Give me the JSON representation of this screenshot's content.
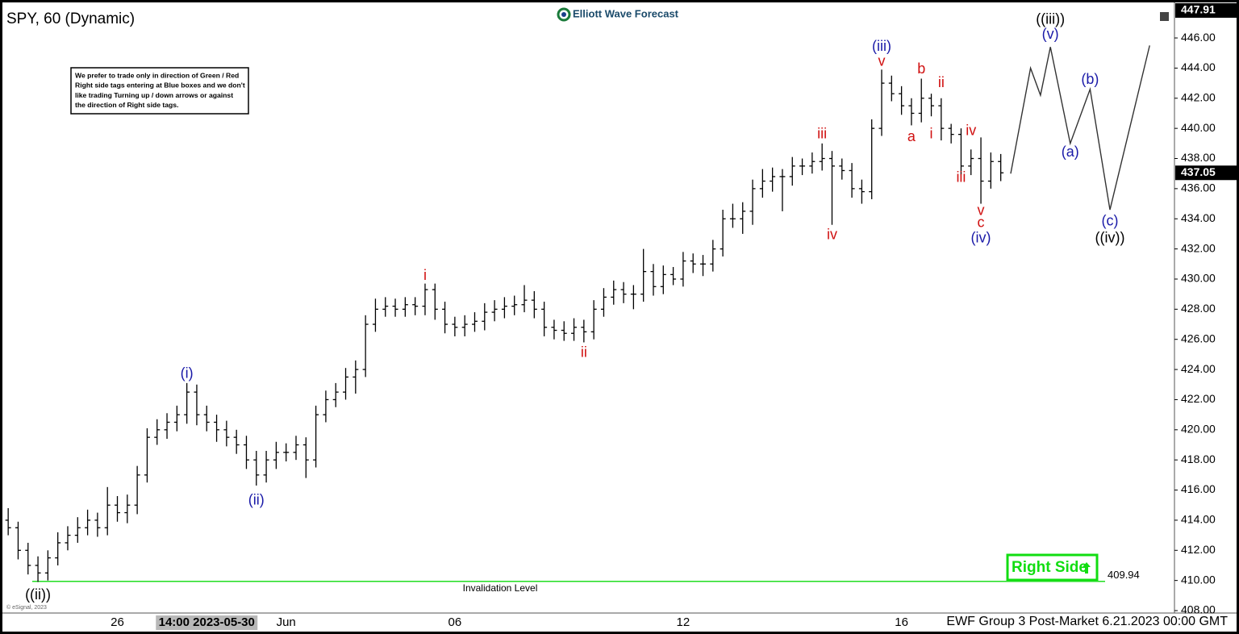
{
  "chart_data": {
    "type": "ohlc",
    "title": "SPY, 60 (Dynamic)",
    "watermark": "Elliott Wave Forecast",
    "footer": "EWF Group 3 Post-Market 6.21.2023 00:00 GMT",
    "copyright": "© eSignal, 2023",
    "note_lines": [
      "We prefer to trade only in direction of Green / Red",
      "Right side tags entering at Blue boxes and we don't",
      "like trading Turning up / down arrows or against",
      "the direction of Right side tags."
    ],
    "bar_color": "#000000",
    "categories": [
      null,
      null,
      null,
      null,
      null,
      null,
      null,
      null,
      null,
      null,
      null,
      "26",
      null,
      null,
      null,
      null,
      null,
      null,
      null,
      null,
      "14:00 2023-05-30",
      null,
      null,
      null,
      null,
      null,
      null,
      null,
      "Jun",
      null,
      null,
      null,
      null,
      null,
      null,
      null,
      null,
      null,
      null,
      null,
      null,
      null,
      null,
      null,
      null,
      "06",
      null,
      null,
      null,
      null,
      null,
      null,
      null,
      null,
      null,
      null,
      null,
      null,
      null,
      null,
      null,
      null,
      null,
      null,
      null,
      null,
      null,
      null,
      "12",
      null,
      null,
      null,
      null,
      null,
      null,
      null,
      null,
      null,
      null,
      null,
      null,
      null,
      null,
      null,
      null,
      null,
      null,
      null,
      null,
      null,
      "16",
      null,
      null,
      null,
      null,
      null,
      null,
      null,
      null,
      null,
      null,
      null,
      null,
      null,
      null,
      null,
      null,
      null,
      null,
      null,
      null,
      null,
      null,
      null,
      null,
      null,
      null,
      null
    ],
    "crosshair_category": 20,
    "bars": [
      [
        414,
        414.8,
        413,
        413.5
      ],
      [
        413.5,
        413.9,
        411.4,
        412
      ],
      [
        412,
        412.5,
        410.4,
        411
      ],
      [
        411,
        411.6,
        409.9,
        410.5
      ],
      [
        410.5,
        412,
        410,
        411.5
      ],
      [
        411.5,
        413.2,
        411,
        412.5
      ],
      [
        412.5,
        413.6,
        412,
        413
      ],
      [
        413,
        414.2,
        412.5,
        413.5
      ],
      [
        413.5,
        414.7,
        413,
        414
      ],
      [
        414,
        414.5,
        412.9,
        413.5
      ],
      [
        413.5,
        416.2,
        413,
        415
      ],
      [
        415,
        415.6,
        413.9,
        414.5
      ],
      [
        414.5,
        415.7,
        413.8,
        415
      ],
      [
        415,
        417.6,
        414.4,
        417
      ],
      [
        417,
        420.1,
        416.5,
        419.5
      ],
      [
        419.5,
        420.7,
        419,
        420
      ],
      [
        420,
        421.1,
        419.4,
        420.5
      ],
      [
        420.5,
        421.6,
        419.9,
        421
      ],
      [
        421,
        423.1,
        420.4,
        422.5
      ],
      [
        422.5,
        423,
        420.3,
        421
      ],
      [
        421,
        421.6,
        419.9,
        420.5
      ],
      [
        420.5,
        421,
        419.2,
        420
      ],
      [
        420,
        420.6,
        418.9,
        419.5
      ],
      [
        419.5,
        420,
        418.4,
        419
      ],
      [
        419,
        419.6,
        417.4,
        418
      ],
      [
        418,
        418.6,
        416.3,
        417
      ],
      [
        417,
        418.6,
        416.5,
        418
      ],
      [
        418,
        419.2,
        417.4,
        418.5
      ],
      [
        418.5,
        419.1,
        417.9,
        418.5
      ],
      [
        418.5,
        419.6,
        418,
        419
      ],
      [
        419,
        419.5,
        416.8,
        418
      ],
      [
        418,
        421.6,
        417.5,
        421
      ],
      [
        421,
        422.6,
        420.5,
        422
      ],
      [
        422,
        423.1,
        421.5,
        422.5
      ],
      [
        422.5,
        424.1,
        422,
        423.5
      ],
      [
        423.5,
        424.6,
        422.4,
        424
      ],
      [
        424,
        427.6,
        423.5,
        427
      ],
      [
        427,
        428.7,
        426.5,
        428
      ],
      [
        428,
        428.8,
        427.5,
        428.2
      ],
      [
        428.2,
        428.7,
        427.5,
        428
      ],
      [
        428,
        428.8,
        427.5,
        428.3
      ],
      [
        428.3,
        428.8,
        427.6,
        428.2
      ],
      [
        428.2,
        429.7,
        427.6,
        429.3
      ],
      [
        429.3,
        429.7,
        427.3,
        428
      ],
      [
        428,
        428.5,
        426.4,
        427
      ],
      [
        427,
        427.5,
        426.2,
        426.8
      ],
      [
        426.8,
        427.6,
        426.2,
        427
      ],
      [
        427,
        427.8,
        426.5,
        427.2
      ],
      [
        427.2,
        428.4,
        426.6,
        427.8
      ],
      [
        427.8,
        428.6,
        427.2,
        428
      ],
      [
        428,
        428.8,
        427.4,
        428.2
      ],
      [
        428.2,
        428.9,
        427.6,
        428.3
      ],
      [
        428.3,
        429.6,
        427.8,
        428.6
      ],
      [
        428.6,
        429.2,
        427.4,
        428
      ],
      [
        428,
        428.5,
        426.2,
        426.8
      ],
      [
        426.8,
        427.3,
        426,
        426.6
      ],
      [
        426.6,
        427.2,
        425.9,
        426.4
      ],
      [
        426.4,
        427.4,
        425.9,
        426.8
      ],
      [
        426.8,
        427.3,
        425.8,
        426.5
      ],
      [
        426.5,
        428.6,
        426,
        428
      ],
      [
        428,
        429.4,
        427.5,
        428.8
      ],
      [
        428.8,
        429.9,
        428.3,
        429.3
      ],
      [
        429.3,
        429.8,
        428.4,
        429
      ],
      [
        429,
        429.6,
        428,
        429
      ],
      [
        429,
        432,
        428.5,
        430.5
      ],
      [
        430.5,
        431,
        428.9,
        429.5
      ],
      [
        429.5,
        430.9,
        429,
        430.3
      ],
      [
        430.3,
        430.8,
        429.6,
        430
      ],
      [
        430,
        431.8,
        429.5,
        431.2
      ],
      [
        431.2,
        431.7,
        430.4,
        431
      ],
      [
        431,
        431.6,
        430.2,
        431
      ],
      [
        431,
        432.6,
        430.5,
        432
      ],
      [
        432,
        434.6,
        431.5,
        434
      ],
      [
        434,
        435,
        433.4,
        434
      ],
      [
        434,
        435.1,
        433,
        434.5
      ],
      [
        434.5,
        436.6,
        433.6,
        436
      ],
      [
        436,
        437.3,
        435.4,
        436.5
      ],
      [
        436.5,
        437.4,
        435.8,
        436.8
      ],
      [
        436.8,
        437.3,
        434.5,
        436.8
      ],
      [
        436.8,
        438.1,
        436.2,
        437.5
      ],
      [
        437.5,
        438,
        436.9,
        437.5
      ],
      [
        437.5,
        438.4,
        437,
        437.8
      ],
      [
        437.8,
        439,
        437.2,
        438
      ],
      [
        438,
        438.5,
        433.6,
        437.5
      ],
      [
        437.5,
        438,
        436.6,
        437.2
      ],
      [
        437.2,
        437.7,
        435.4,
        436
      ],
      [
        436,
        436.6,
        435,
        435.8
      ],
      [
        435.8,
        440.6,
        435.3,
        440
      ],
      [
        440,
        443.9,
        439.5,
        443
      ],
      [
        443,
        443.5,
        441.8,
        442.3
      ],
      [
        442.3,
        442.8,
        440.9,
        441.5
      ],
      [
        441.5,
        442,
        440.2,
        441
      ],
      [
        441,
        443.3,
        440.4,
        442
      ],
      [
        442,
        442.3,
        440.8,
        441.5
      ],
      [
        441.5,
        442,
        439.2,
        440
      ],
      [
        440,
        440.3,
        439,
        439.6
      ],
      [
        439.6,
        440,
        436.9,
        437.5
      ],
      [
        437.5,
        438.6,
        436.9,
        438
      ],
      [
        438,
        439.4,
        435,
        436.5
      ],
      [
        436.5,
        438.4,
        436,
        437.8
      ],
      [
        437.8,
        438.3,
        436.5,
        437.05
      ]
    ],
    "projection": {
      "color": "#333333",
      "x": [
        101,
        103,
        104,
        105,
        107,
        109,
        111,
        115
      ],
      "values": [
        437,
        444,
        442.2,
        445.4,
        439,
        442.6,
        434.6,
        445.5
      ]
    },
    "annotations": [
      {
        "text": "((ii))",
        "x": 3,
        "y": 409.0,
        "color": "#000000"
      },
      {
        "text": "(i)",
        "x": 18,
        "y": 423.7,
        "color": "#1a1aa8"
      },
      {
        "text": "(ii)",
        "x": 25,
        "y": 415.3,
        "color": "#1a1aa8"
      },
      {
        "text": "i",
        "x": 42,
        "y": 430.2,
        "color": "#d01010"
      },
      {
        "text": "ii",
        "x": 58,
        "y": 425.1,
        "color": "#d01010"
      },
      {
        "text": "iii",
        "x": 82,
        "y": 439.6,
        "color": "#d01010"
      },
      {
        "text": "iv",
        "x": 83,
        "y": 432.9,
        "color": "#d01010"
      },
      {
        "text": "(iii)",
        "x": 88,
        "y": 445.4,
        "color": "#1a1aa8"
      },
      {
        "text": "v",
        "x": 88,
        "y": 444.4,
        "color": "#d01010"
      },
      {
        "text": "a",
        "x": 91,
        "y": 439.4,
        "color": "#d01010"
      },
      {
        "text": "b",
        "x": 92,
        "y": 443.9,
        "color": "#d01010"
      },
      {
        "text": "i",
        "x": 93,
        "y": 439.6,
        "color": "#d01010"
      },
      {
        "text": "ii",
        "x": 94,
        "y": 443.0,
        "color": "#d01010"
      },
      {
        "text": "iii",
        "x": 96,
        "y": 436.7,
        "color": "#d01010"
      },
      {
        "text": "iv",
        "x": 97,
        "y": 439.8,
        "color": "#d01010"
      },
      {
        "text": "v",
        "x": 98,
        "y": 434.5,
        "color": "#d01010"
      },
      {
        "text": "c",
        "x": 98,
        "y": 433.7,
        "color": "#d01010"
      },
      {
        "text": "(iv)",
        "x": 98,
        "y": 432.7,
        "color": "#1a1aa8"
      },
      {
        "text": "((iii))",
        "x": 105,
        "y": 447.2,
        "color": "#000000"
      },
      {
        "text": "(v)",
        "x": 105,
        "y": 446.2,
        "color": "#1a1aa8"
      },
      {
        "text": "(a)",
        "x": 107,
        "y": 438.4,
        "color": "#1a1aa8"
      },
      {
        "text": "(b)",
        "x": 109,
        "y": 443.2,
        "color": "#1a1aa8"
      },
      {
        "text": "(c)",
        "x": 111,
        "y": 433.8,
        "color": "#1a1aa8"
      },
      {
        "text": "((iv))",
        "x": 111,
        "y": 432.7,
        "color": "#000000"
      }
    ],
    "invalidation": {
      "label": "Invalidation Level",
      "value": 409.94,
      "color": "#22dd22"
    },
    "right_side": {
      "text": "Right Side",
      "color": "#11dd11"
    },
    "last_price": 437.05,
    "high_tag": 447.91,
    "ylim": [
      407.84,
      448.09
    ],
    "yticks": [
      {
        "value": 408,
        "label": "408.00"
      },
      {
        "value": 410,
        "label": "410.00"
      },
      {
        "value": 412,
        "label": "412.00"
      },
      {
        "value": 414,
        "label": "414.00"
      },
      {
        "value": 416,
        "label": "416.00"
      },
      {
        "value": 418,
        "label": "418.00"
      },
      {
        "value": 420,
        "label": "420.00"
      },
      {
        "value": 422,
        "label": "422.00"
      },
      {
        "value": 424,
        "label": "424.00"
      },
      {
        "value": 426,
        "label": "426.00"
      },
      {
        "value": 428,
        "label": "428.00"
      },
      {
        "value": 430,
        "label": "430.00"
      },
      {
        "value": 432,
        "label": "432.00"
      },
      {
        "value": 434,
        "label": "434.00"
      },
      {
        "value": 436,
        "label": "436.00"
      },
      {
        "value": 438,
        "label": "438.00"
      },
      {
        "value": 440,
        "label": "440.00"
      },
      {
        "value": 442,
        "label": "442.00"
      },
      {
        "value": 444,
        "label": "444.00"
      },
      {
        "value": 446,
        "label": "446.00"
      }
    ]
  }
}
